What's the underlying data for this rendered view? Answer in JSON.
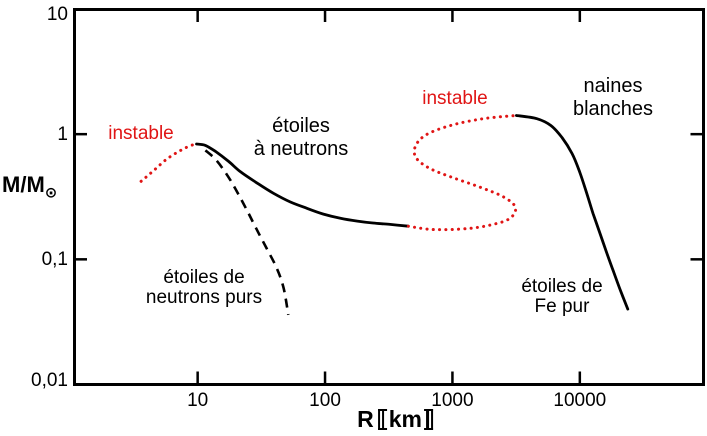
{
  "colors": {
    "black": "#000000",
    "red": "#e01515"
  },
  "axis": {
    "y_title_main": "M/M",
    "y_title_sub": "⊙",
    "x_title_main": "R",
    "x_title_unit": "km"
  },
  "labels": {
    "instable_left": "instable",
    "instable_middle": "instable",
    "neutron_stars": [
      "étoiles",
      "à neutrons"
    ],
    "white_dwarfs": [
      "naines",
      "blanches"
    ],
    "pure_neutron_stars": [
      "étoiles de",
      "neutrons purs"
    ],
    "iron_stars": [
      "étoiles de",
      "Fe pur"
    ]
  },
  "chart_data": {
    "type": "line",
    "title": "",
    "xlabel": "R [km]",
    "ylabel": "M/M☉",
    "x_scale": "log",
    "y_scale": "log",
    "xlim": [
      1.07,
      93500
    ],
    "ylim": [
      0.01,
      10
    ],
    "grid": false,
    "x_ticks": [
      {
        "v": 10,
        "label": "10"
      },
      {
        "v": 100,
        "label": "100"
      },
      {
        "v": 1000,
        "label": "1000"
      },
      {
        "v": 10000,
        "label": "10000"
      }
    ],
    "y_ticks": [
      {
        "v": 10,
        "label": "10"
      },
      {
        "v": 1,
        "label": "1"
      },
      {
        "v": 0.1,
        "label": "0,1"
      },
      {
        "v": 0.01,
        "label": "0,01"
      }
    ],
    "series": [
      {
        "name": "instable-left",
        "style": "dotted",
        "color": "red",
        "r_km": [
          3.6,
          4.4,
          5.7,
          7.4,
          8.8,
          9.8
        ],
        "m": [
          0.42,
          0.5,
          0.63,
          0.745,
          0.81,
          0.835
        ]
      },
      {
        "name": "etoiles-a-neutrons",
        "style": "solid",
        "color": "black",
        "r_km": [
          9.8,
          11.5,
          13.8,
          17.5,
          21.7,
          29.5,
          39.4,
          53.5,
          72.5,
          97,
          132,
          179,
          238,
          324,
          450
        ],
        "m": [
          0.835,
          0.813,
          0.728,
          0.606,
          0.5,
          0.405,
          0.337,
          0.287,
          0.255,
          0.23,
          0.213,
          0.202,
          0.195,
          0.19,
          0.184
        ]
      },
      {
        "name": "instable-middle",
        "style": "dotted",
        "color": "red",
        "r_km": [
          450,
          700,
          1300,
          2080,
          2840,
          3120,
          2510,
          1650,
          1010,
          666,
          523,
          508,
          610,
          958,
          1740,
          3180
        ],
        "m": [
          0.184,
          0.173,
          0.176,
          0.19,
          0.213,
          0.261,
          0.316,
          0.377,
          0.449,
          0.532,
          0.639,
          0.784,
          0.977,
          1.17,
          1.33,
          1.41
        ]
      },
      {
        "name": "naines-blanches",
        "style": "solid",
        "color": "black",
        "r_km": [
          3180,
          4600,
          5940,
          7240,
          8700,
          10000,
          11400,
          12700,
          14200,
          16200,
          18400,
          20900,
          23800
        ],
        "m": [
          1.41,
          1.33,
          1.17,
          0.94,
          0.7,
          0.496,
          0.33,
          0.233,
          0.168,
          0.114,
          0.0795,
          0.056,
          0.04
        ]
      },
      {
        "name": "etoiles-neutrons-purs",
        "style": "dashed",
        "color": "black",
        "r_km": [
          11.5,
          13.6,
          15.7,
          18.1,
          20.9,
          24.6,
          29,
          34.7,
          41.6,
          47.2,
          51.5
        ],
        "m": [
          0.742,
          0.64,
          0.533,
          0.428,
          0.331,
          0.242,
          0.174,
          0.123,
          0.0857,
          0.0594,
          0.036
        ]
      }
    ]
  }
}
